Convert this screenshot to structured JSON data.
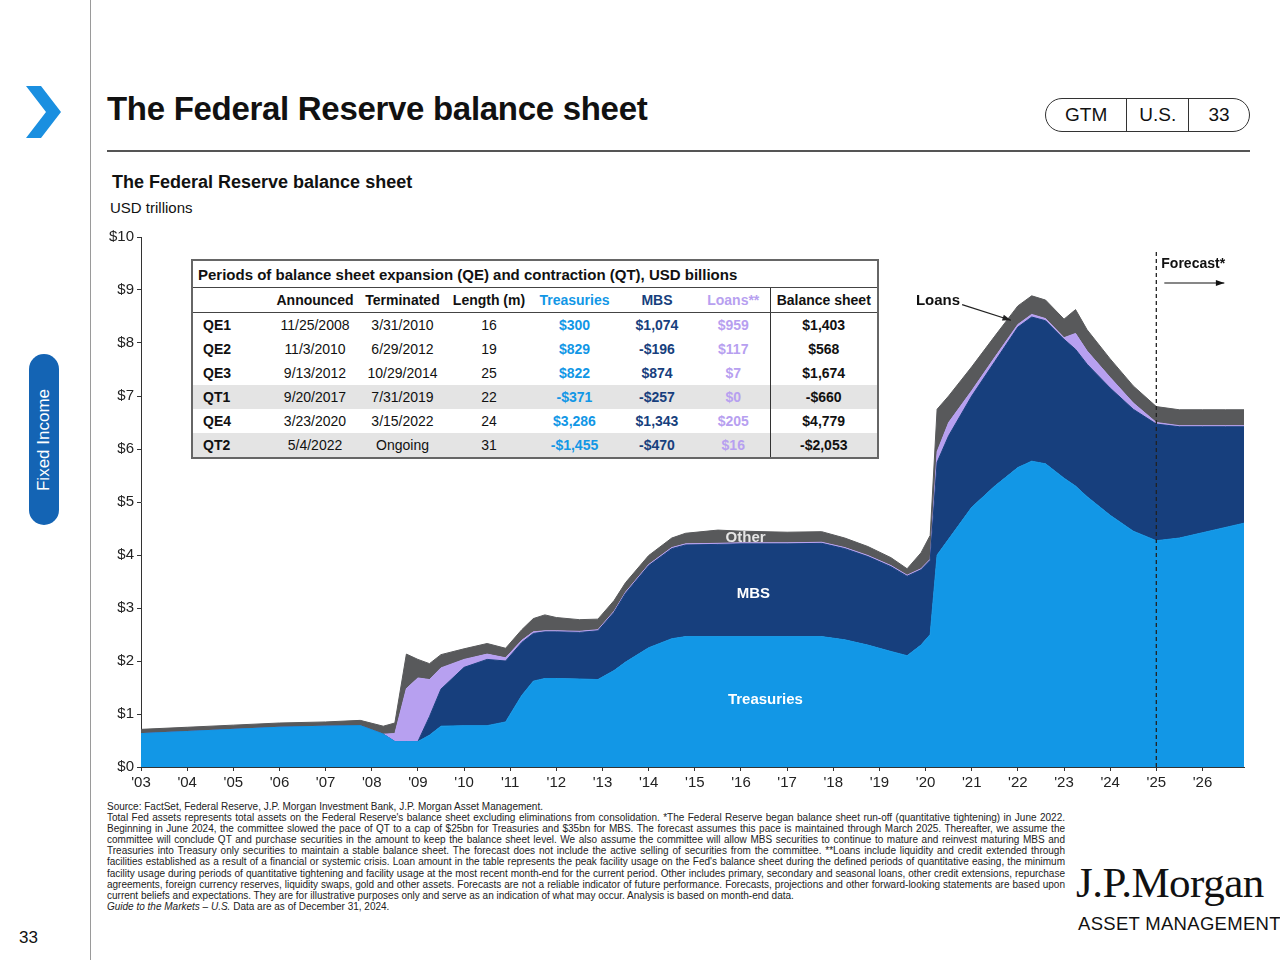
{
  "header": {
    "title": "The Federal Reserve balance sheet",
    "tags": [
      "GTM",
      "U.S.",
      "33"
    ],
    "section": "Fixed Income",
    "page": "33"
  },
  "chart_data": {
    "type": "area",
    "title": "The Federal Reserve balance sheet",
    "subtitle": "USD trillions",
    "stacked": true,
    "grid": false,
    "x": [
      2003,
      2004,
      2005,
      2006,
      2007,
      2007.75,
      2008.25,
      2008.5,
      2008.75,
      2009,
      2009.25,
      2009.5,
      2010,
      2010.5,
      2010.9,
      2011.25,
      2011.5,
      2011.75,
      2012,
      2012.5,
      2012.9,
      2013.25,
      2013.5,
      2014,
      2014.5,
      2014.8,
      2015.5,
      2016,
      2017,
      2017.75,
      2018.25,
      2018.75,
      2019.25,
      2019.6,
      2019.9,
      2020.1,
      2020.25,
      2020.5,
      2021,
      2021.5,
      2022,
      2022.3,
      2022.6,
      2023,
      2023.25,
      2023.5,
      2024,
      2024.5,
      2025,
      2025.5,
      2026,
      2026.5,
      2026.9
    ],
    "xlim": [
      2003,
      2026.9
    ],
    "xticks": [
      {
        "value": 2003,
        "label": "'03"
      },
      {
        "value": 2004,
        "label": "'04"
      },
      {
        "value": 2005,
        "label": "'05"
      },
      {
        "value": 2006,
        "label": "'06"
      },
      {
        "value": 2007,
        "label": "'07"
      },
      {
        "value": 2008,
        "label": "'08"
      },
      {
        "value": 2009,
        "label": "'09"
      },
      {
        "value": 2010,
        "label": "'10"
      },
      {
        "value": 2011,
        "label": "'11"
      },
      {
        "value": 2012,
        "label": "'12"
      },
      {
        "value": 2013,
        "label": "'13"
      },
      {
        "value": 2014,
        "label": "'14"
      },
      {
        "value": 2015,
        "label": "'15"
      },
      {
        "value": 2016,
        "label": "'16"
      },
      {
        "value": 2017,
        "label": "'17"
      },
      {
        "value": 2018,
        "label": "'18"
      },
      {
        "value": 2019,
        "label": "'19"
      },
      {
        "value": 2020,
        "label": "'20"
      },
      {
        "value": 2021,
        "label": "'21"
      },
      {
        "value": 2022,
        "label": "'22"
      },
      {
        "value": 2023,
        "label": "'23"
      },
      {
        "value": 2024,
        "label": "'24"
      },
      {
        "value": 2025,
        "label": "'25"
      },
      {
        "value": 2026,
        "label": "'26"
      }
    ],
    "ylim": [
      0,
      10
    ],
    "yticks": [
      {
        "value": 0,
        "label": "$0"
      },
      {
        "value": 1,
        "label": "$1"
      },
      {
        "value": 2,
        "label": "$2"
      },
      {
        "value": 3,
        "label": "$3"
      },
      {
        "value": 4,
        "label": "$4"
      },
      {
        "value": 5,
        "label": "$5"
      },
      {
        "value": 6,
        "label": "$6"
      },
      {
        "value": 7,
        "label": "$7"
      },
      {
        "value": 8,
        "label": "$8"
      },
      {
        "value": 9,
        "label": "$9"
      },
      {
        "value": 10,
        "label": "$10"
      }
    ],
    "series": [
      {
        "name": "Treasuries",
        "color": "#1297e6",
        "values": [
          0.63,
          0.67,
          0.71,
          0.75,
          0.77,
          0.78,
          0.62,
          0.48,
          0.48,
          0.48,
          0.6,
          0.77,
          0.78,
          0.78,
          0.85,
          1.35,
          1.62,
          1.67,
          1.67,
          1.66,
          1.65,
          1.82,
          1.98,
          2.25,
          2.42,
          2.46,
          2.46,
          2.46,
          2.46,
          2.46,
          2.4,
          2.3,
          2.18,
          2.1,
          2.3,
          2.5,
          4.0,
          4.3,
          4.9,
          5.3,
          5.65,
          5.77,
          5.72,
          5.45,
          5.3,
          5.1,
          4.75,
          4.45,
          4.27,
          4.32,
          4.42,
          4.52,
          4.6
        ]
      },
      {
        "name": "MBS",
        "color": "#173f7d",
        "values": [
          0,
          0,
          0,
          0,
          0,
          0,
          0,
          0,
          0,
          0,
          0.35,
          0.7,
          1.1,
          1.25,
          1.15,
          1.0,
          0.9,
          0.88,
          0.88,
          0.88,
          0.92,
          1.1,
          1.3,
          1.55,
          1.7,
          1.73,
          1.74,
          1.75,
          1.75,
          1.76,
          1.72,
          1.67,
          1.6,
          1.5,
          1.42,
          1.4,
          1.75,
          1.95,
          2.1,
          2.35,
          2.65,
          2.72,
          2.7,
          2.62,
          2.58,
          2.5,
          2.4,
          2.3,
          2.2,
          2.1,
          2.0,
          1.9,
          1.82
        ]
      },
      {
        "name": "Loans",
        "color": "#b7a0f0",
        "values": [
          0,
          0,
          0,
          0,
          0,
          0,
          0,
          0.15,
          1.0,
          1.2,
          0.7,
          0.4,
          0.15,
          0.1,
          0.06,
          0.04,
          0.03,
          0.02,
          0.02,
          0.02,
          0.02,
          0.02,
          0.02,
          0.02,
          0.02,
          0.02,
          0.02,
          0.02,
          0.02,
          0.02,
          0.02,
          0.02,
          0.02,
          0.02,
          0.02,
          0.02,
          0.2,
          0.25,
          0.1,
          0.08,
          0.05,
          0.05,
          0.04,
          0.03,
          0.3,
          0.25,
          0.2,
          0.12,
          0.03,
          0.02,
          0.02,
          0.02,
          0.02
        ]
      },
      {
        "name": "Other",
        "color": "#58595b",
        "values": [
          0.08,
          0.08,
          0.08,
          0.08,
          0.08,
          0.1,
          0.15,
          0.2,
          0.65,
          0.35,
          0.3,
          0.25,
          0.2,
          0.2,
          0.18,
          0.2,
          0.25,
          0.3,
          0.25,
          0.22,
          0.2,
          0.2,
          0.18,
          0.17,
          0.18,
          0.2,
          0.25,
          0.22,
          0.2,
          0.2,
          0.18,
          0.17,
          0.15,
          0.12,
          0.3,
          0.45,
          0.8,
          0.5,
          0.45,
          0.4,
          0.35,
          0.35,
          0.35,
          0.35,
          0.45,
          0.4,
          0.35,
          0.32,
          0.3,
          0.3,
          0.3,
          0.3,
          0.3
        ]
      }
    ],
    "annotations": [
      {
        "text": "Loans"
      },
      {
        "text": "Other"
      },
      {
        "text": "MBS"
      },
      {
        "text": "Treasuries"
      }
    ],
    "forecast": {
      "x": 2025,
      "label": "Forecast*"
    }
  },
  "table": {
    "title": "Periods of balance sheet expansion (QE) and contraction (QT), USD billions",
    "columns": [
      "Announced",
      "Terminated",
      "Length (m)",
      "Treasuries",
      "MBS",
      "Loans**",
      "Balance sheet"
    ],
    "rows": [
      {
        "label": "QE1",
        "values": [
          "11/25/2008",
          "3/31/2010",
          "16",
          "$300",
          "$1,074",
          "$959",
          "$1,403"
        ]
      },
      {
        "label": "QE2",
        "values": [
          "11/3/2010",
          "6/29/2012",
          "19",
          "$829",
          "-$196",
          "$117",
          "$568"
        ]
      },
      {
        "label": "QE3",
        "values": [
          "9/13/2012",
          "10/29/2014",
          "25",
          "$822",
          "$874",
          "$7",
          "$1,674"
        ]
      },
      {
        "label": "QT1",
        "values": [
          "9/20/2017",
          "7/31/2019",
          "22",
          "-$371",
          "-$257",
          "$0",
          "-$660"
        ]
      },
      {
        "label": "QE4",
        "values": [
          "3/23/2020",
          "3/15/2022",
          "24",
          "$3,286",
          "$1,343",
          "$205",
          "$4,779"
        ]
      },
      {
        "label": "QT2",
        "values": [
          "5/4/2022",
          "Ongoing",
          "31",
          "-$1,455",
          "-$470",
          "$16",
          "-$2,053"
        ]
      }
    ]
  },
  "footer": {
    "source": "Source: FactSet, Federal Reserve, J.P. Morgan Investment Bank, J.P. Morgan Asset Management.",
    "notes": "Total Fed assets represents total assets on the Federal Reserve's balance sheet excluding eliminations from consolidation. *The Federal Reserve began balance sheet run-off (quantitative tightening) in June 2022. Beginning in June 2024, the committee slowed the pace of QT to a cap of $25bn for Treasuries and $35bn for MBS. The forecast assumes this pace is maintained through March 2025. Thereafter, we assume the committee will conclude QT and purchase securities in the amount to keep the balance sheet level. We also assume the committee will allow MBS securities to continue to mature and reinvest maturing MBS and Treasuries into Treasury only securities to maintain a stable balance sheet. The forecast does not include the active selling of securities from the committee. **Loans include liquidity and credit extended through facilities established as a result of a financial or systemic crisis. Loan amount in the table represents the peak facility usage on the Fed's balance sheet during the defined periods of quantitative easing, the minimum facility usage during periods of quantitative tightening and facility usage at the most recent month-end for the current period. Other includes primary, secondary and seasonal loans, other credit extensions, repurchase agreements, foreign currency reserves, liquidity swaps, gold and other assets. Forecasts are not a reliable indicator of future performance. Forecasts, projections and other forward-looking statements are based upon current beliefs and expectations. They are for illustrative purposes only and serve as an indication of what may occur. Analysis is based on month-end data.",
    "guide": "Guide to the Markets – U.S.",
    "asof": "Data are as of December 31, 2024."
  },
  "logo": {
    "name": "J.P.Morgan",
    "sub": "ASSET MANAGEMENT"
  }
}
